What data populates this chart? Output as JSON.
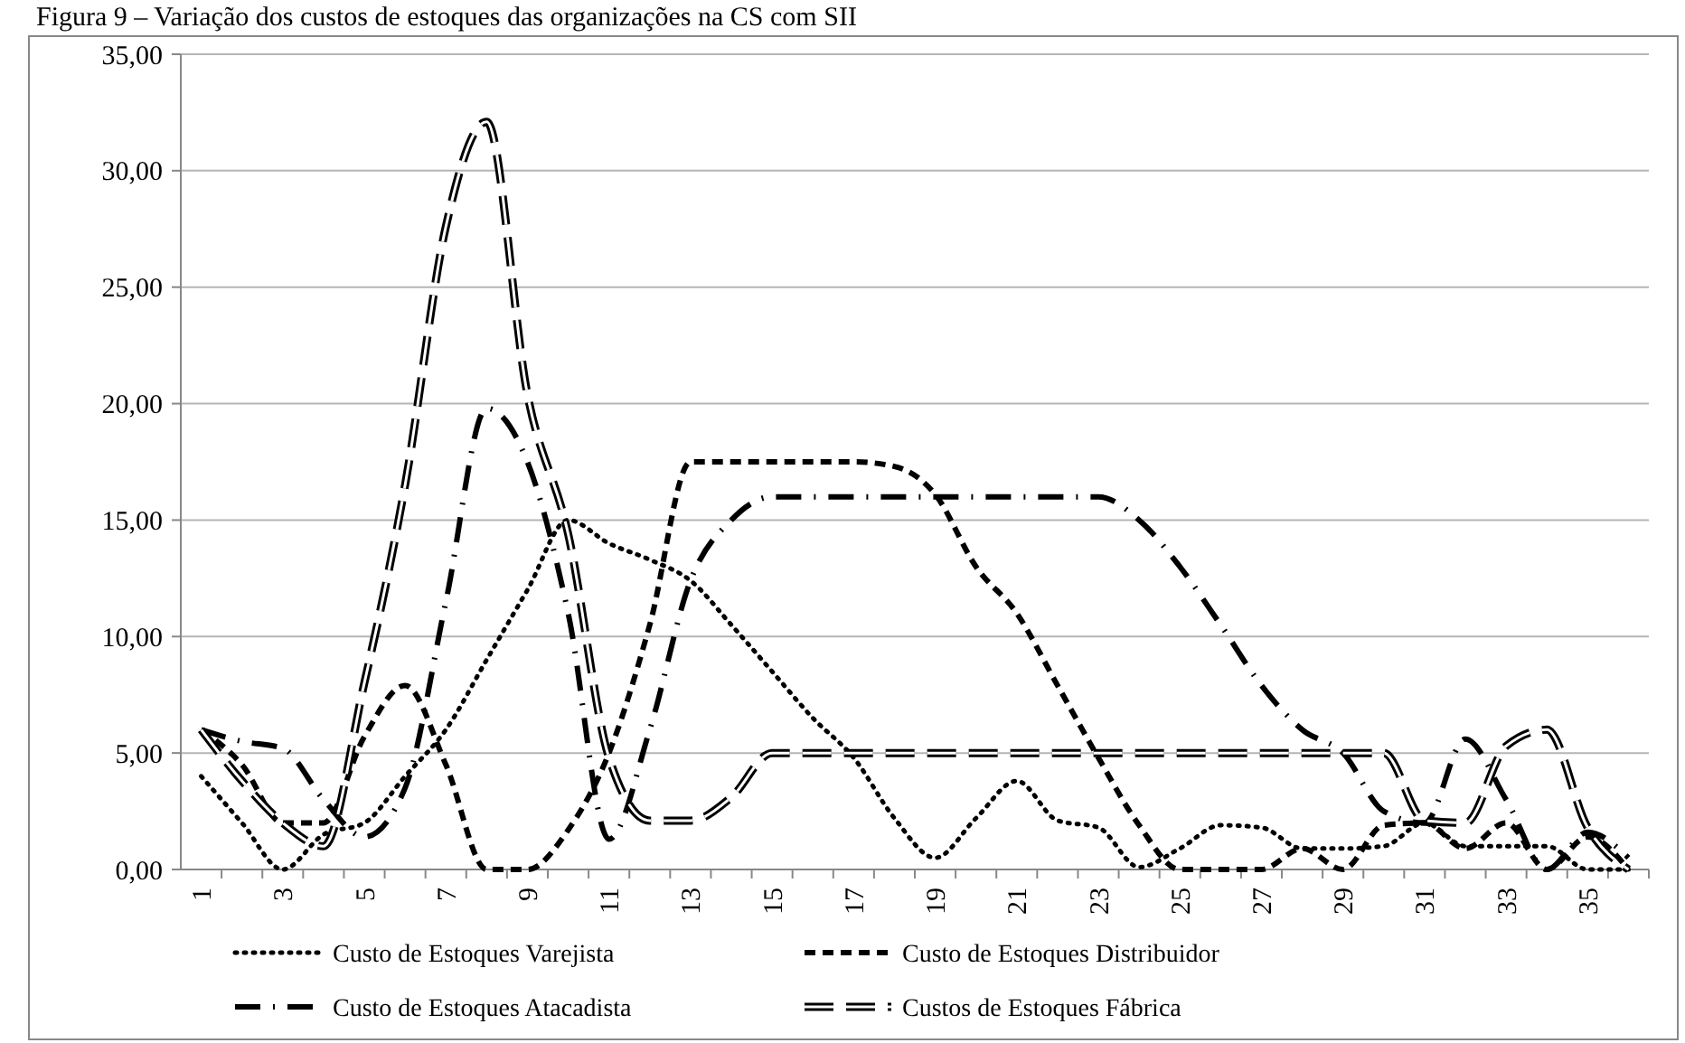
{
  "chart_data": {
    "type": "line",
    "title": "Figura 9 – Variação dos custos de estoques das organizações na CS com SII",
    "categories": [
      "1",
      null,
      "3",
      null,
      "5",
      null,
      "7",
      null,
      "9",
      null,
      "11",
      null,
      "13",
      null,
      "15",
      null,
      "17",
      null,
      "19",
      null,
      "21",
      null,
      "23",
      null,
      "25",
      null,
      "27",
      null,
      "29",
      null,
      "31",
      null,
      "33",
      null,
      "35",
      null
    ],
    "series": [
      {
        "name": "Custo de Estoques Varejista",
        "color": "#000000",
        "line_style": "dotted",
        "values": [
          4,
          2,
          0,
          1.5,
          2,
          4,
          6,
          9,
          12,
          15,
          14,
          13.3,
          12.4,
          10.5,
          8.5,
          6.5,
          4.8,
          2.2,
          0.5,
          2.2,
          3.8,
          2.1,
          1.8,
          0.1,
          0.9,
          1.9,
          1.8,
          0.9,
          0.9,
          1,
          2,
          1,
          1,
          1,
          0,
          0
        ]
      },
      {
        "name": "Custo de Estoques Distribuidor",
        "color": "#000000",
        "line_style": "dashed",
        "values": [
          6,
          4.5,
          2,
          2,
          5.7,
          7.9,
          4.5,
          0,
          0,
          1.7,
          5,
          10.5,
          17.5,
          17.5,
          17.5,
          17.5,
          17.5,
          17.3,
          16.1,
          13,
          11,
          7.9,
          4.8,
          1.9,
          0,
          0,
          0,
          0.9,
          0,
          1.9,
          2,
          0.9,
          2,
          0,
          1.4,
          0
        ]
      },
      {
        "name": "Custo de Estoques Atacadista",
        "color": "#000000",
        "line_style": "dashdot",
        "values": [
          6,
          5.5,
          5.2,
          3,
          1.4,
          3.5,
          11.5,
          19.8,
          17.5,
          11,
          1.3,
          6,
          12.4,
          15,
          16,
          16,
          16,
          16,
          16,
          16,
          16,
          16,
          16,
          15,
          13,
          10.5,
          7.9,
          6,
          5,
          2.5,
          2,
          5.6,
          3,
          0,
          1.6,
          0.5
        ]
      },
      {
        "name": "Custos de Estoques Fábrica",
        "color": "#000000",
        "line_style": "double",
        "values": [
          6,
          3.8,
          2,
          1,
          8,
          16.5,
          27.6,
          32.1,
          20.4,
          14.4,
          4.8,
          2.1,
          2.1,
          3.1,
          5,
          5,
          5,
          5,
          5,
          5,
          5,
          5,
          5,
          5,
          5,
          5,
          5,
          5,
          5,
          5,
          2.1,
          2,
          5.3,
          6,
          1.8,
          0
        ]
      }
    ],
    "ylim": [
      0,
      35
    ],
    "yticks": [
      {
        "value": 0,
        "label": "0,00"
      },
      {
        "value": 5,
        "label": "5,00"
      },
      {
        "value": 10,
        "label": "10,00"
      },
      {
        "value": 15,
        "label": "15,00"
      },
      {
        "value": 20,
        "label": "20,00"
      },
      {
        "value": 25,
        "label": "25,00"
      },
      {
        "value": 30,
        "label": "30,00"
      },
      {
        "value": 35,
        "label": "35,00"
      }
    ],
    "grid": "y",
    "legend": "bottom"
  }
}
